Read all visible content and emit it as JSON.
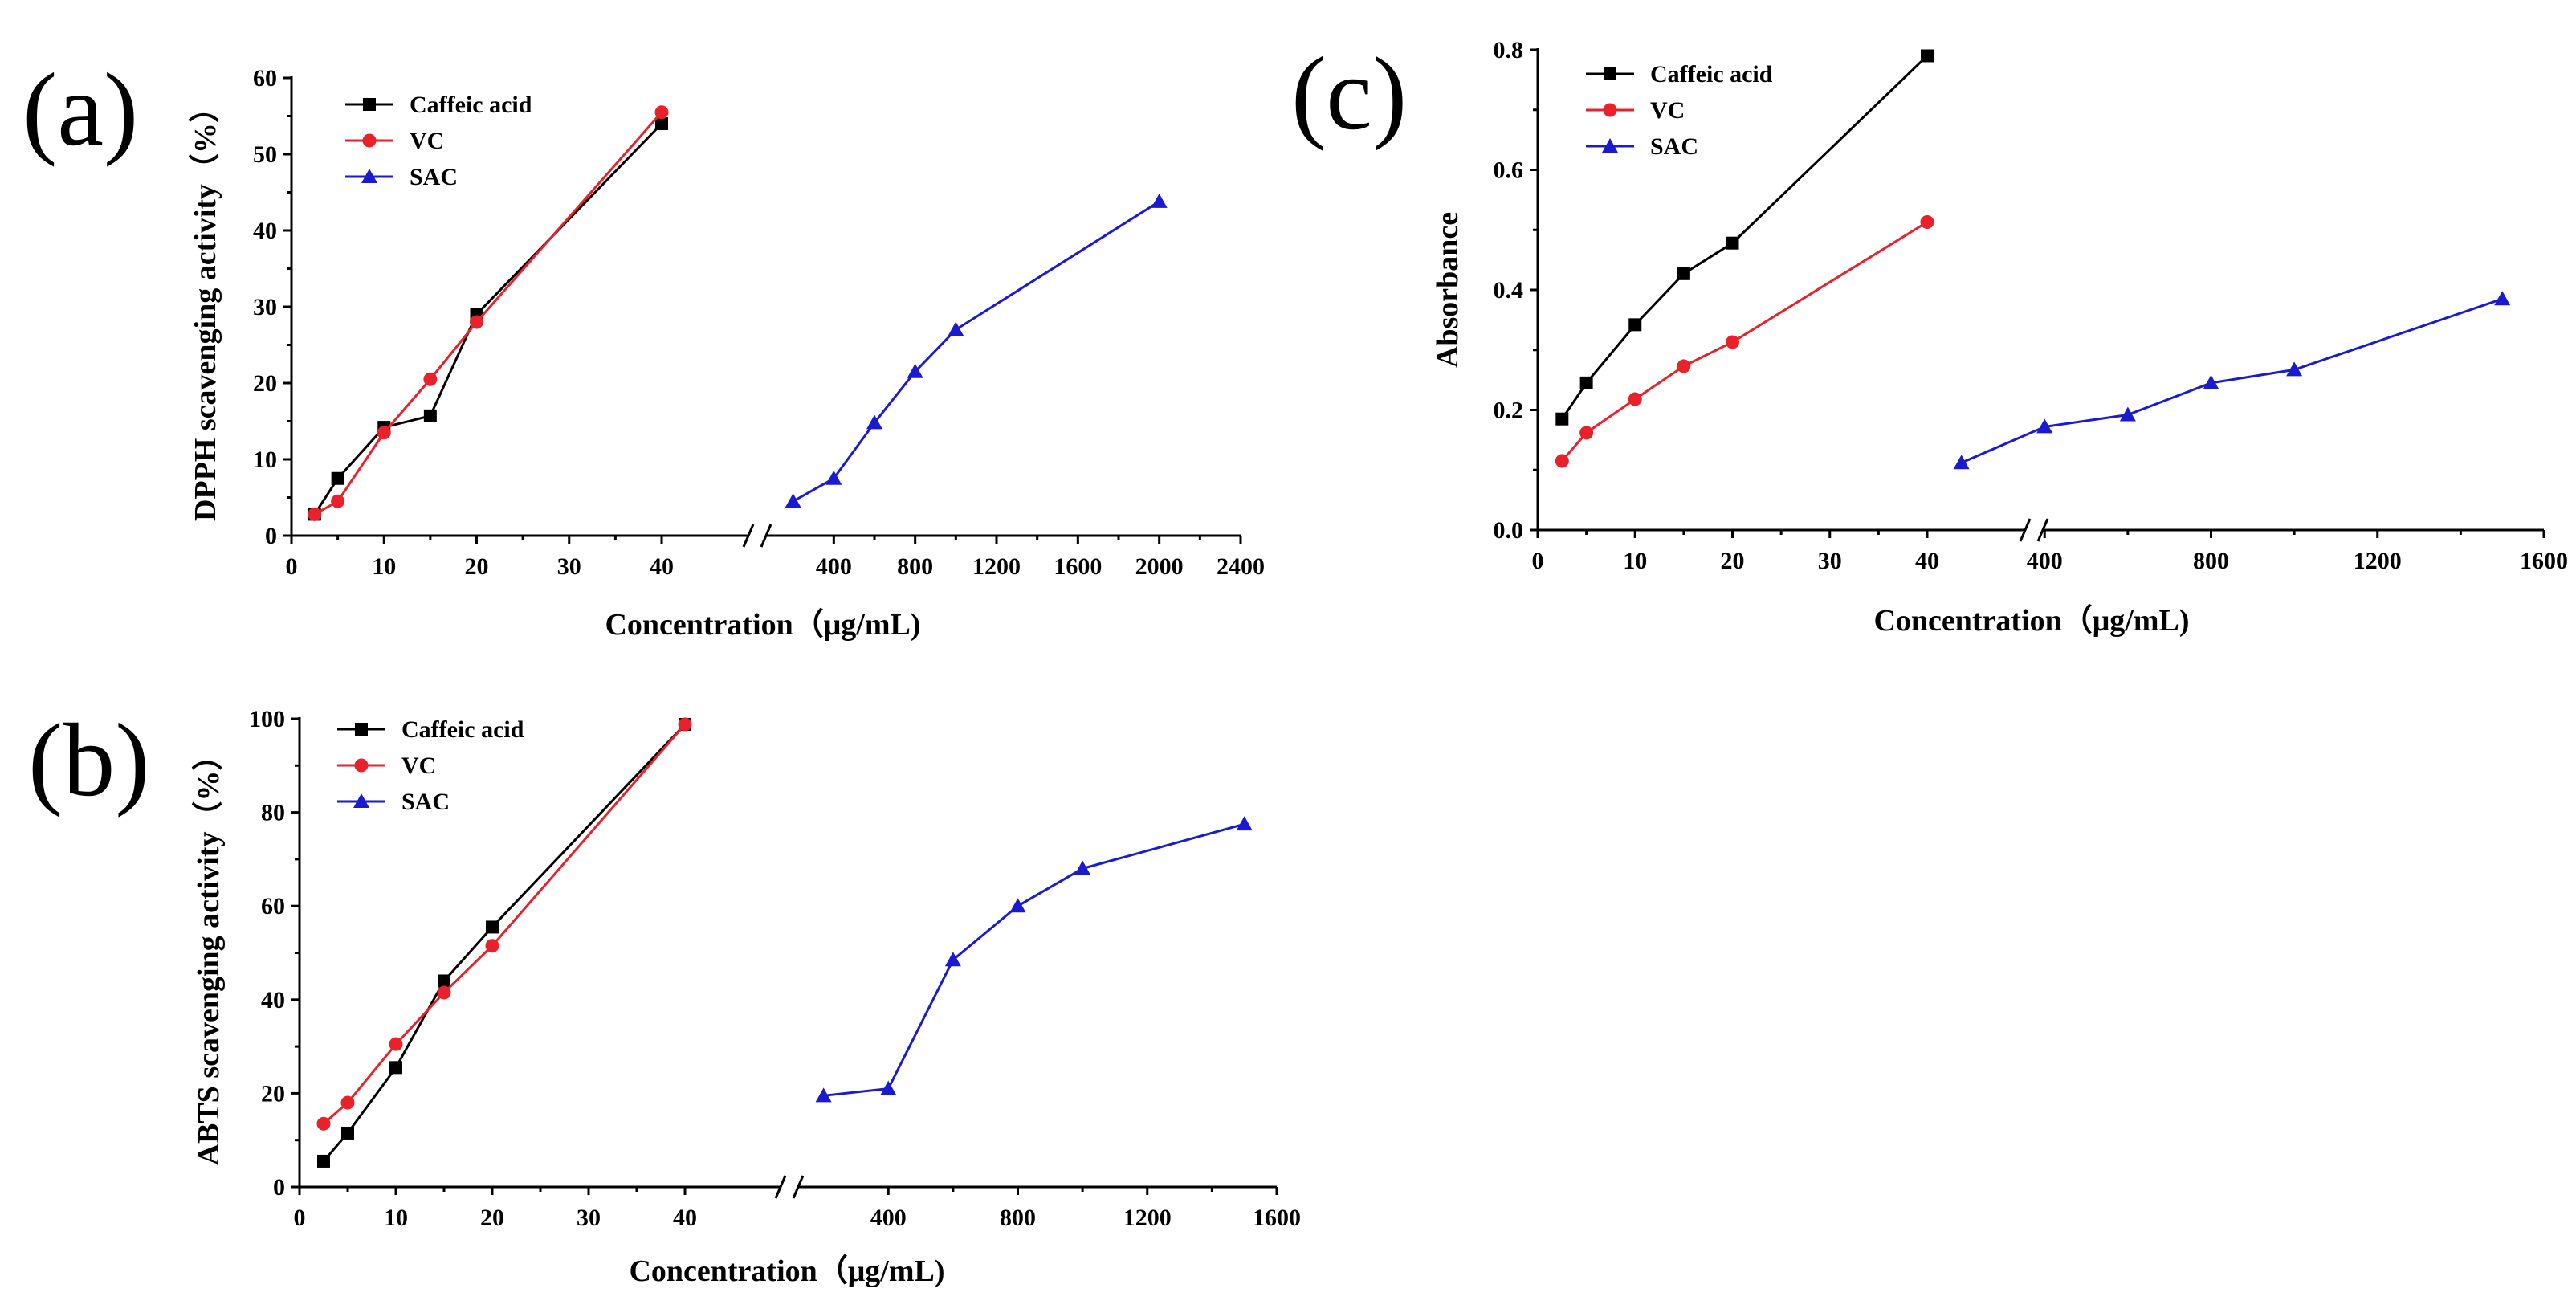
{
  "chart_data": [
    {
      "type": "line",
      "panel_label": "(a)",
      "xlabel": "Concentration（μg/mL)",
      "ylabel": "DPPH scavenging activity（%）",
      "ylim": [
        0,
        60
      ],
      "yticks": [
        0,
        10,
        20,
        30,
        40,
        50,
        60
      ],
      "xticks_left": [
        0,
        10,
        20,
        30,
        40
      ],
      "xticks_right": [
        400,
        800,
        1200,
        1600,
        2000,
        2400
      ],
      "legend_position": "top-left",
      "series": [
        {
          "name": "Caffeic acid",
          "color": "#000000",
          "marker": "square",
          "segment": "left",
          "x": [
            2.5,
            5,
            10,
            15,
            20,
            40
          ],
          "y": [
            2.8,
            7.5,
            14.2,
            15.7,
            29.0,
            54.0
          ]
        },
        {
          "name": "VC",
          "color": "#e8212a",
          "marker": "circle",
          "segment": "left",
          "x": [
            2.5,
            5,
            10,
            15,
            20,
            40
          ],
          "y": [
            2.8,
            4.5,
            13.5,
            20.5,
            28.0,
            55.5
          ]
        },
        {
          "name": "SAC",
          "color": "#1a1ad0",
          "marker": "triangle",
          "segment": "right",
          "x": [
            200,
            400,
            600,
            800,
            1000,
            2000
          ],
          "y": [
            4.5,
            7.5,
            14.8,
            21.5,
            27.0,
            43.8
          ]
        }
      ]
    },
    {
      "type": "line",
      "panel_label": "(b)",
      "xlabel": "Concentration（μg/mL)",
      "ylabel": "ABTS scavenging activity（%）",
      "ylim": [
        0,
        100
      ],
      "yticks": [
        0,
        20,
        40,
        60,
        80,
        100
      ],
      "xticks_left": [
        0,
        10,
        20,
        30,
        40
      ],
      "xticks_right": [
        400,
        800,
        1200,
        1600
      ],
      "legend_position": "top-left",
      "series": [
        {
          "name": "Caffeic acid",
          "color": "#000000",
          "marker": "square",
          "segment": "left",
          "x": [
            2.5,
            5,
            10,
            15,
            20,
            40
          ],
          "y": [
            5.5,
            11.5,
            25.5,
            44.0,
            55.5,
            98.8
          ]
        },
        {
          "name": "VC",
          "color": "#e8212a",
          "marker": "circle",
          "segment": "left",
          "x": [
            2.5,
            5,
            10,
            15,
            20,
            40
          ],
          "y": [
            13.5,
            18.0,
            30.5,
            41.5,
            51.5,
            98.8
          ]
        },
        {
          "name": "SAC",
          "color": "#1a1ad0",
          "marker": "triangle",
          "segment": "right",
          "x": [
            200,
            400,
            600,
            800,
            1000,
            1500
          ],
          "y": [
            19.5,
            21.0,
            48.5,
            60.0,
            68.0,
            77.5
          ]
        }
      ]
    },
    {
      "type": "line",
      "panel_label": "(c)",
      "xlabel": "Concentration（μg/mL)",
      "ylabel": "Absorbance",
      "ylim": [
        0,
        0.8
      ],
      "yticks": [
        0.0,
        0.2,
        0.4,
        0.6,
        0.8
      ],
      "ytick_labels": [
        "0.0",
        "0.2",
        "0.4",
        "0.6",
        "0.8"
      ],
      "xticks_left": [
        0,
        10,
        20,
        30,
        40
      ],
      "xticks_right": [
        400,
        800,
        1200,
        1600
      ],
      "legend_position": "top-left",
      "series": [
        {
          "name": "Caffeic acid",
          "color": "#000000",
          "marker": "square",
          "segment": "left",
          "x": [
            2.5,
            5,
            10,
            15,
            20,
            40
          ],
          "y": [
            0.185,
            0.245,
            0.342,
            0.427,
            0.478,
            0.79
          ]
        },
        {
          "name": "VC",
          "color": "#e8212a",
          "marker": "circle",
          "segment": "left",
          "x": [
            2.5,
            5,
            10,
            15,
            20,
            40
          ],
          "y": [
            0.115,
            0.162,
            0.218,
            0.273,
            0.313,
            0.513
          ]
        },
        {
          "name": "SAC",
          "color": "#1a1ad0",
          "marker": "triangle",
          "segment": "right",
          "x": [
            200,
            400,
            600,
            800,
            1000,
            1500
          ],
          "y": [
            0.112,
            0.172,
            0.192,
            0.245,
            0.267,
            0.385
          ]
        }
      ]
    }
  ]
}
